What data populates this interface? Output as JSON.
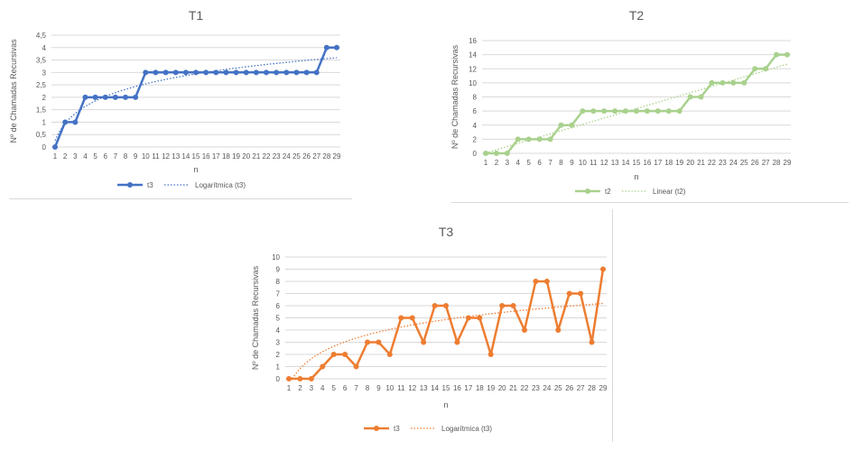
{
  "chart_data": [
    {
      "type": "line",
      "title": "T1",
      "xlabel": "n",
      "ylabel": "Nº de Chamadas Recursivas",
      "categories": [
        "1",
        "2",
        "3",
        "4",
        "5",
        "6",
        "7",
        "8",
        "9",
        "10",
        "11",
        "12",
        "13",
        "14",
        "15",
        "16",
        "17",
        "18",
        "19",
        "20",
        "21",
        "22",
        "23",
        "24",
        "25",
        "26",
        "27",
        "28",
        "29"
      ],
      "yticks": [
        "0",
        "0,5",
        "1",
        "1,5",
        "2",
        "2,5",
        "3",
        "3,5",
        "4",
        "4,5"
      ],
      "ylim": [
        0,
        4.5
      ],
      "series": [
        {
          "name": "t3",
          "color": "#4472c4",
          "values": [
            0,
            1,
            1,
            2,
            2,
            2,
            2,
            2,
            2,
            3,
            3,
            3,
            3,
            3,
            3,
            3,
            3,
            3,
            3,
            3,
            3,
            3,
            3,
            3,
            3,
            3,
            3,
            4,
            4
          ]
        }
      ],
      "trendline": {
        "name": "Logarítmica (t3)",
        "kind": "log",
        "a": 0.26,
        "b": 0.99,
        "color": "#4472c4"
      },
      "grid": true,
      "legend": "bottom"
    },
    {
      "type": "line",
      "title": "T2",
      "xlabel": "n",
      "ylabel": "Nº de Chamadas Recursivas",
      "categories": [
        "1",
        "2",
        "3",
        "4",
        "5",
        "6",
        "7",
        "8",
        "9",
        "10",
        "11",
        "12",
        "13",
        "14",
        "15",
        "16",
        "17",
        "18",
        "19",
        "20",
        "21",
        "22",
        "23",
        "24",
        "25",
        "26",
        "27",
        "28",
        "29"
      ],
      "yticks": [
        "0",
        "2",
        "4",
        "6",
        "8",
        "10",
        "12",
        "14",
        "16"
      ],
      "ylim": [
        0,
        16
      ],
      "series": [
        {
          "name": "t2",
          "color": "#a9d18e",
          "values": [
            0,
            0,
            0,
            2,
            2,
            2,
            2,
            4,
            4,
            6,
            6,
            6,
            6,
            6,
            6,
            6,
            6,
            6,
            6,
            8,
            8,
            10,
            10,
            10,
            10,
            12,
            12,
            14,
            14
          ]
        }
      ],
      "trendline": {
        "name": "Linear (t2)",
        "kind": "linear",
        "a": -0.4,
        "b": 0.45,
        "color": "#a9d18e"
      },
      "grid": true,
      "legend": "bottom"
    },
    {
      "type": "line",
      "title": "T3",
      "xlabel": "n",
      "ylabel": "Nº de Chamadas Recursivas",
      "categories": [
        "1",
        "2",
        "3",
        "4",
        "5",
        "6",
        "7",
        "8",
        "9",
        "10",
        "11",
        "12",
        "13",
        "14",
        "15",
        "16",
        "17",
        "18",
        "19",
        "20",
        "21",
        "22",
        "23",
        "24",
        "25",
        "26",
        "27",
        "28",
        "29"
      ],
      "yticks": [
        "0",
        "1",
        "2",
        "3",
        "4",
        "5",
        "6",
        "7",
        "8",
        "9",
        "10"
      ],
      "ylim": [
        0,
        10
      ],
      "series": [
        {
          "name": "t3",
          "color": "#ed7d31",
          "values": [
            0,
            0,
            0,
            1,
            2,
            2,
            1,
            3,
            3,
            2,
            5,
            5,
            3,
            6,
            6,
            3,
            5,
            5,
            2,
            6,
            6,
            4,
            8,
            8,
            4,
            7,
            7,
            3,
            9
          ]
        }
      ],
      "trendline": {
        "name": "Logarítmica (t3)",
        "kind": "log",
        "a": -0.55,
        "b": 2.0,
        "color": "#ed7d31"
      },
      "grid": true,
      "legend": "bottom"
    }
  ]
}
